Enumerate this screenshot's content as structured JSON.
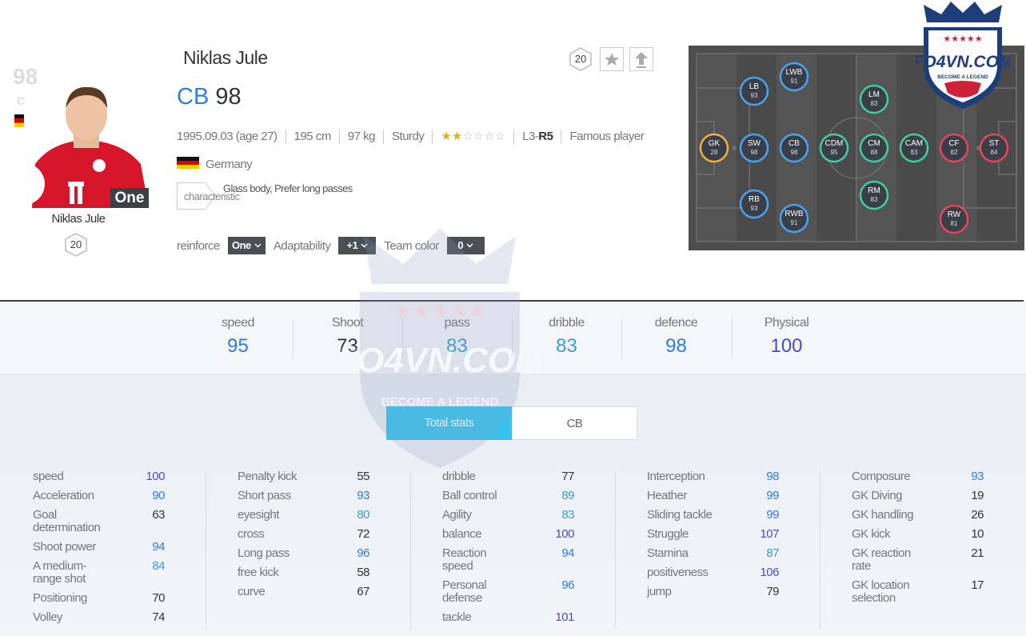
{
  "watermark": {
    "brand": "FO4VN.COM",
    "slogan": "BECOME A LEGEND"
  },
  "card": {
    "ovr": "98",
    "position": "CB",
    "season": "One",
    "name": "Niklas Jule",
    "level": "20"
  },
  "header": {
    "name": "Niklas Jule",
    "level": "20",
    "position": "CB",
    "ovr": "98"
  },
  "info": {
    "items": [
      "1995.09.03 (age 27)",
      "195 cm",
      "97 kg",
      "Sturdy"
    ],
    "skill_moves": 2,
    "foot_left": "L3-",
    "foot_right": "R5",
    "trait": "Famous player",
    "nation": "Germany",
    "characteristic_label": "characteristic",
    "characteristics": "Glass body, Prefer long passes"
  },
  "options": [
    {
      "label": "reinforce",
      "value": "One"
    },
    {
      "label": "Adaptability",
      "value": "+1"
    },
    {
      "label": "Team color",
      "value": "0"
    }
  ],
  "pitch": [
    {
      "pos": "GK",
      "rating": 28,
      "color": "#f0b23c"
    },
    {
      "pos": "SW",
      "rating": 98,
      "color": "#4aa3f0"
    },
    {
      "pos": "LB",
      "rating": 93,
      "color": "#4aa3f0"
    },
    {
      "pos": "RB",
      "rating": 93,
      "color": "#4aa3f0"
    },
    {
      "pos": "LWB",
      "rating": 91,
      "color": "#4aa3f0"
    },
    {
      "pos": "RWB",
      "rating": 91,
      "color": "#4aa3f0"
    },
    {
      "pos": "CB",
      "rating": 98,
      "color": "#4aa3f0"
    },
    {
      "pos": "CDM",
      "rating": 95,
      "color": "#3ecfa0"
    },
    {
      "pos": "CM",
      "rating": 88,
      "color": "#3ecfa0"
    },
    {
      "pos": "LM",
      "rating": 83,
      "color": "#3ecfa0"
    },
    {
      "pos": "RM",
      "rating": 83,
      "color": "#3ecfa0"
    },
    {
      "pos": "CAM",
      "rating": 83,
      "color": "#3ecfa0"
    },
    {
      "pos": "CF",
      "rating": 82,
      "color": "#e8455a"
    },
    {
      "pos": "RW",
      "rating": 81,
      "color": "#e8455a"
    },
    {
      "pos": "ST",
      "rating": 84,
      "color": "#e8455a"
    }
  ],
  "summary": [
    {
      "label": "speed",
      "value": 95
    },
    {
      "label": "Shoot",
      "value": 73
    },
    {
      "label": "pass",
      "value": 83
    },
    {
      "label": "dribble",
      "value": 83
    },
    {
      "label": "defence",
      "value": 98
    },
    {
      "label": "Physical",
      "value": 100
    }
  ],
  "tabs": [
    "Total stats",
    "CB"
  ],
  "stats": [
    [
      {
        "label": "speed",
        "value": 100
      },
      {
        "label": "Acceleration",
        "value": 90
      },
      {
        "label": "Goal determination",
        "value": 63
      },
      {
        "label": "Shoot power",
        "value": 94
      },
      {
        "label": "A medium-range shot",
        "value": 84
      },
      {
        "label": "Positioning",
        "value": 70
      },
      {
        "label": "Volley",
        "value": 74
      }
    ],
    [
      {
        "label": "Penalty kick",
        "value": 55
      },
      {
        "label": "Short pass",
        "value": 93
      },
      {
        "label": "eyesight",
        "value": 80
      },
      {
        "label": "cross",
        "value": 72
      },
      {
        "label": "Long pass",
        "value": 96
      },
      {
        "label": "free kick",
        "value": 58
      },
      {
        "label": "curve",
        "value": 67
      }
    ],
    [
      {
        "label": "dribble",
        "value": 77
      },
      {
        "label": "Ball control",
        "value": 89
      },
      {
        "label": "Agility",
        "value": 83
      },
      {
        "label": "balance",
        "value": 100
      },
      {
        "label": "Reaction speed",
        "value": 94
      },
      {
        "label": "Personal defense",
        "value": 96
      },
      {
        "label": "tackle",
        "value": 101
      }
    ],
    [
      {
        "label": "Interception",
        "value": 98
      },
      {
        "label": "Heather",
        "value": 99
      },
      {
        "label": "Sliding tackle",
        "value": 99
      },
      {
        "label": "Struggle",
        "value": 107
      },
      {
        "label": "Stamina",
        "value": 87
      },
      {
        "label": "positiveness",
        "value": 106
      },
      {
        "label": "jump",
        "value": 79
      }
    ],
    [
      {
        "label": "Composure",
        "value": 93
      },
      {
        "label": "GK Diving",
        "value": 19
      },
      {
        "label": "GK handling",
        "value": 26
      },
      {
        "label": "GK kick",
        "value": 10
      },
      {
        "label": "GK reaction rate",
        "value": 21
      },
      {
        "label": "GK location selection",
        "value": 17
      }
    ]
  ]
}
